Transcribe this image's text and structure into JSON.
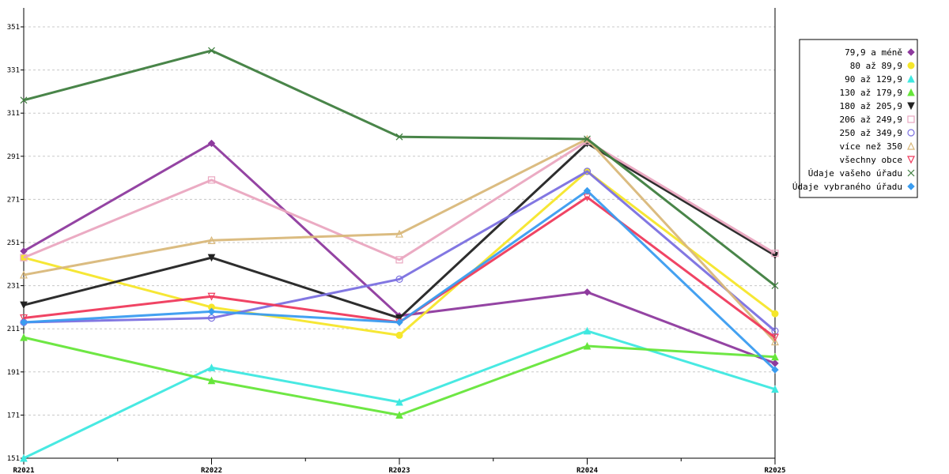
{
  "chart_data": {
    "type": "line",
    "title": "",
    "xlabel": "",
    "ylabel": "",
    "categories": [
      "R2021",
      "R2022",
      "R2023",
      "R2024",
      "R2025"
    ],
    "ylim": [
      151,
      359
    ],
    "yticks": [
      151,
      171,
      191,
      211,
      231,
      251,
      271,
      291,
      311,
      331,
      351
    ],
    "grid": true,
    "legend_position": "right",
    "series": [
      {
        "name": "79,9 a méně",
        "color": "#8e3a9e",
        "marker": "diamond",
        "values": [
          247,
          297,
          217,
          228,
          195
        ]
      },
      {
        "name": "80 až 89,9",
        "color": "#f5e62a",
        "marker": "circle-filled",
        "values": [
          244,
          221,
          208,
          284,
          218
        ]
      },
      {
        "name": "90 až 129,9",
        "color": "#3ee8e0",
        "marker": "triangle-up",
        "values": [
          151,
          193,
          177,
          210,
          183
        ]
      },
      {
        "name": "130 až 179,9",
        "color": "#66e63a",
        "marker": "triangle-up",
        "values": [
          207,
          187,
          171,
          203,
          198
        ]
      },
      {
        "name": "180 až 205,9",
        "color": "#222222",
        "marker": "triangle-down",
        "values": [
          222,
          244,
          216,
          297,
          245
        ]
      },
      {
        "name": "206 až 249,9",
        "color": "#eaa7c0",
        "marker": "square-open",
        "values": [
          244,
          280,
          243,
          298,
          246
        ]
      },
      {
        "name": "250 až 349,9",
        "color": "#7b70e0",
        "marker": "circle-open",
        "values": [
          214,
          216,
          234,
          284,
          210
        ]
      },
      {
        "name": "více než 350",
        "color": "#d9b87a",
        "marker": "triangle-open",
        "values": [
          236,
          252,
          255,
          299,
          205
        ]
      },
      {
        "name": "všechny obce",
        "color": "#ef3a5c",
        "marker": "triangle-down-open",
        "values": [
          216,
          226,
          214,
          272,
          207
        ]
      },
      {
        "name": "Údaje vašeho úřadu",
        "color": "#3f7e3f",
        "marker": "x",
        "values": [
          317,
          340,
          300,
          299,
          231
        ]
      },
      {
        "name": "Údaje vybraného úřadu",
        "color": "#3a9cf0",
        "marker": "diamond",
        "values": [
          214,
          219,
          214,
          275,
          192
        ]
      }
    ]
  }
}
